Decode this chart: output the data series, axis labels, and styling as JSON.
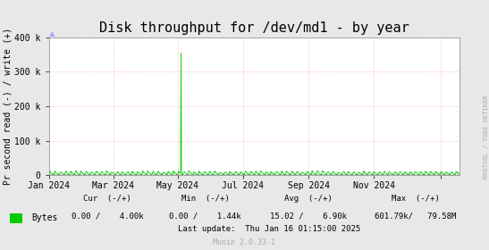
{
  "title": "Disk throughput for /dev/md1 - by year",
  "ylabel": "Pr second read (-) / write (+)",
  "bg_color": "#e8e8e8",
  "plot_bg_color": "#ffffff",
  "grid_color": "#ff9999",
  "line_color": "#00cc00",
  "zero_line_color": "#000000",
  "ylim": [
    0,
    400000
  ],
  "yticks": [
    0,
    100000,
    200000,
    300000,
    400000
  ],
  "ytick_labels": [
    "0",
    "100 k",
    "200 k",
    "300 k",
    "400 k"
  ],
  "xstart": 1704067200,
  "xend": 1737158400,
  "xticks": [
    1704067200,
    1709251200,
    1714435200,
    1719705600,
    1724976000,
    1730246400,
    1735603200
  ],
  "xtick_labels": [
    "Jan 2024",
    "Mar 2024",
    "May 2024",
    "Jul 2024",
    "Sep 2024",
    "Nov 2024",
    ""
  ],
  "spike_x": 1714694400,
  "spike_y": 355000,
  "noise_amplitude": 20000,
  "noise_period": 10,
  "watermark": "RRDTOOL / TOBI OETIKER",
  "legend_label": "Bytes",
  "legend_color": "#00cc00",
  "cur_label": "Cur  (-/+)",
  "min_label": "Min  (-/+)",
  "avg_label": "Avg  (-/+)",
  "max_label": "Max  (-/+)",
  "cur_val": "0.00 /    4.00k",
  "min_val": "0.00 /    1.44k",
  "avg_val": "15.02 /    6.90k",
  "max_val": "601.79k/   79.58M",
  "last_update": "Last update:  Thu Jan 16 01:15:00 2025",
  "munin_version": "Munin 2.0.33-1",
  "arrow_color": "#aaaaff"
}
